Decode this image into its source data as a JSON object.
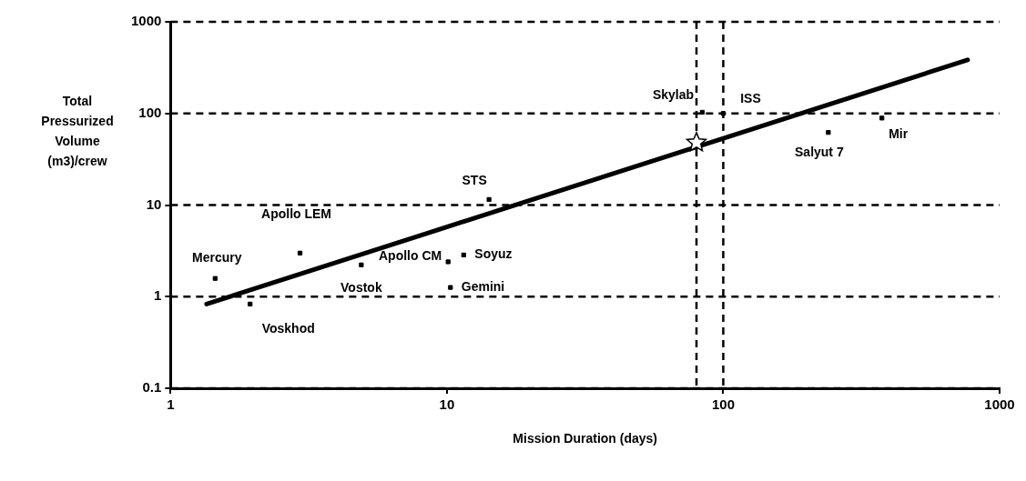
{
  "chart_data": {
    "type": "scatter",
    "xlabel": "Mission Duration (days)",
    "ylabel": "Total Pressurized Volume (m3)/crew",
    "log": "xy",
    "xlim": [
      1,
      1000
    ],
    "xticks": [
      1,
      10,
      100,
      1000
    ],
    "ylim": [
      0.1,
      1000
    ],
    "yticks": [
      0.1,
      1,
      10,
      100,
      1000
    ],
    "grid": "y",
    "legend": false,
    "series": [
      {
        "name": "Mercury",
        "color": "#000000",
        "marker": "square",
        "x": [
          1.45
        ],
        "values": [
          1.58
        ]
      },
      {
        "name": "Voskhod",
        "color": "#000000",
        "marker": "square",
        "x": [
          1.94
        ],
        "values": [
          0.83
        ]
      },
      {
        "name": "Apollo LEM",
        "color": "#000000",
        "marker": "square",
        "x": [
          2.94
        ],
        "values": [
          2.99
        ]
      },
      {
        "name": "Vostok",
        "color": "#000000",
        "marker": "square",
        "x": [
          4.9
        ],
        "values": [
          2.22
        ]
      },
      {
        "name": "Apollo CM",
        "color": "#000000",
        "marker": "square",
        "x": [
          10.1
        ],
        "values": [
          2.4
        ]
      },
      {
        "name": "Soyuz",
        "color": "#000000",
        "marker": "square",
        "x": [
          11.5
        ],
        "values": [
          2.85
        ]
      },
      {
        "name": "Gemini",
        "color": "#000000",
        "marker": "square",
        "x": [
          10.3
        ],
        "values": [
          1.26
        ]
      },
      {
        "name": "STS",
        "color": "#000000",
        "marker": "square",
        "x": [
          14.2
        ],
        "values": [
          11.5
        ]
      },
      {
        "name": "Skylab",
        "color": "#000000",
        "marker": "square",
        "x": [
          84
        ],
        "values": [
          103
        ]
      },
      {
        "name": "ISS",
        "color": "#000000",
        "marker": "square",
        "x": [
          100
        ],
        "values": [
          100
        ]
      },
      {
        "name": "Salyut 7",
        "color": "#000000",
        "marker": "square",
        "x": [
          240
        ],
        "values": [
          62
        ]
      },
      {
        "name": "Mir",
        "color": "#000000",
        "marker": "square",
        "x": [
          375
        ],
        "values": [
          89
        ]
      },
      {
        "color": "#000000",
        "marker": "star",
        "x": [
          80
        ],
        "values": [
          48
        ]
      },
      {
        "type": "line",
        "color": "#000000",
        "marker": "none",
        "line_style": "solid",
        "x": [
          1.35,
          766
        ],
        "values": [
          0.83,
          384
        ]
      }
    ],
    "ref_lines": [
      {
        "axis": "x",
        "value": 80,
        "line_style": "dashed"
      },
      {
        "axis": "x",
        "value": 100,
        "line_style": "dashed"
      }
    ]
  }
}
